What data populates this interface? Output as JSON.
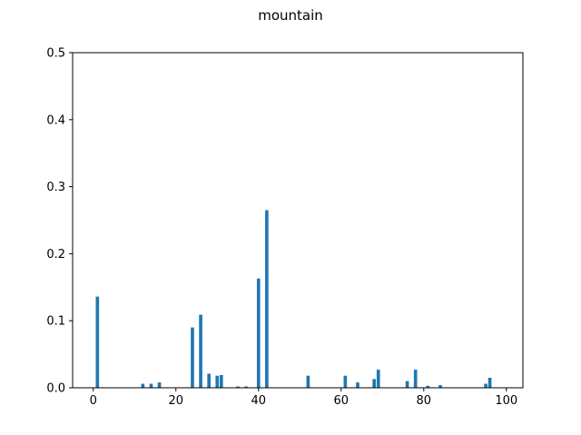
{
  "chart_data": {
    "type": "bar",
    "title": "mountain",
    "xlabel": "",
    "ylabel": "",
    "xlim": [
      -5,
      104
    ],
    "ylim": [
      0,
      0.5
    ],
    "xticks": [
      0,
      20,
      40,
      60,
      80,
      100
    ],
    "xtick_labels": [
      "0",
      "20",
      "40",
      "60",
      "80",
      "100"
    ],
    "yticks": [
      0.0,
      0.1,
      0.2,
      0.3,
      0.4,
      0.5
    ],
    "ytick_labels": [
      "0.0",
      "0.1",
      "0.2",
      "0.3",
      "0.4",
      "0.5"
    ],
    "grid": false,
    "bar_color": "#1f77b4",
    "bar_width": 0.8,
    "x": [
      1,
      12,
      14,
      16,
      24,
      26,
      28,
      30,
      31,
      35,
      37,
      40,
      42,
      52,
      61,
      64,
      68,
      69,
      76,
      78,
      81,
      84,
      95,
      96
    ],
    "values": [
      0.136,
      0.006,
      0.006,
      0.008,
      0.09,
      0.109,
      0.021,
      0.018,
      0.019,
      0.002,
      0.002,
      0.163,
      0.265,
      0.018,
      0.018,
      0.008,
      0.013,
      0.027,
      0.01,
      0.027,
      0.003,
      0.004,
      0.006,
      0.015
    ]
  }
}
